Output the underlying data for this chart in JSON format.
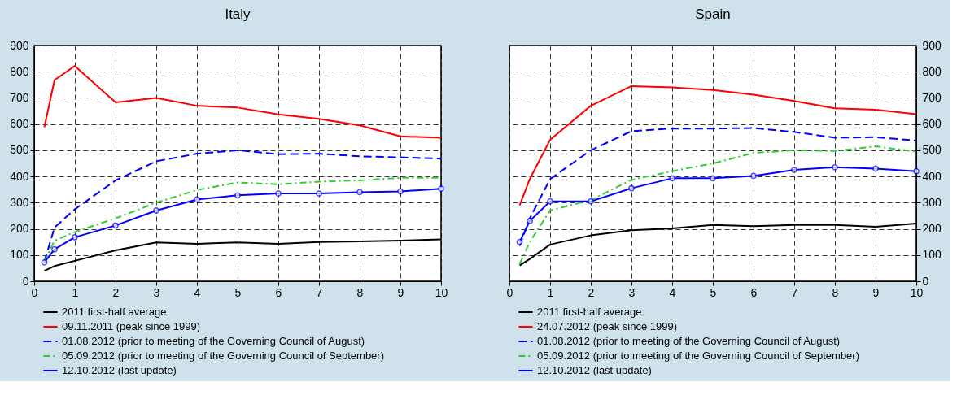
{
  "chart_data": [
    {
      "type": "line",
      "title": "Italy",
      "x": [
        0.25,
        0.5,
        1,
        2,
        3,
        4,
        5,
        6,
        7,
        8,
        9,
        10
      ],
      "xlim": [
        0,
        10
      ],
      "xticks": [
        0,
        1,
        2,
        3,
        4,
        5,
        6,
        7,
        8,
        9,
        10
      ],
      "ylim": [
        0,
        900
      ],
      "yticks": [
        0,
        100,
        200,
        300,
        400,
        500,
        600,
        700,
        800,
        900
      ],
      "grid": true,
      "legend": "bottom",
      "series": [
        {
          "name": "2011 first-half average",
          "color": "#000000",
          "line_style": "solid",
          "values": [
            40,
            58,
            78,
            118,
            148,
            143,
            148,
            143,
            150,
            152,
            155,
            160
          ]
        },
        {
          "name": "09.11.2011 (peak since 1999)",
          "color": "#ff0000",
          "line_style": "solid",
          "values": [
            588,
            768,
            822,
            683,
            700,
            670,
            663,
            637,
            620,
            595,
            553,
            548
          ]
        },
        {
          "name": "01.08.2012 (prior to meeting of the Governing Council of August)",
          "color": "#0000ff",
          "line_style": "dashed",
          "values": [
            75,
            205,
            275,
            385,
            458,
            487,
            500,
            485,
            487,
            477,
            473,
            468
          ]
        },
        {
          "name": "05.09.2012 (prior to meeting of the Governing Council of September)",
          "color": "#33cc33",
          "line_style": "dashdot",
          "values": [
            75,
            155,
            188,
            240,
            300,
            348,
            377,
            370,
            380,
            385,
            395,
            395
          ]
        },
        {
          "name": "12.10.2012 (last update)",
          "color": "#0000ff",
          "line_style": "solid",
          "marker": "circle",
          "values": [
            72,
            122,
            168,
            213,
            270,
            312,
            328,
            335,
            335,
            340,
            343,
            353
          ]
        }
      ]
    },
    {
      "type": "line",
      "title": "Spain",
      "x": [
        0.25,
        0.5,
        1,
        2,
        3,
        4,
        5,
        6,
        7,
        8,
        9,
        10
      ],
      "xlim": [
        0,
        10
      ],
      "xticks": [
        0,
        1,
        2,
        3,
        4,
        5,
        6,
        7,
        8,
        9,
        10
      ],
      "y2lim": [
        0,
        900
      ],
      "y2ticks": [
        0,
        100,
        200,
        300,
        400,
        500,
        600,
        700,
        800,
        900
      ],
      "grid": true,
      "legend": "bottom",
      "series": [
        {
          "name": "2011 first-half average",
          "color": "#000000",
          "line_style": "solid",
          "axis": "y2",
          "values": [
            60,
            85,
            140,
            175,
            195,
            202,
            215,
            210,
            215,
            215,
            208,
            220
          ]
        },
        {
          "name": "24.07.2012 (peak since 1999)",
          "color": "#ff0000",
          "line_style": "solid",
          "axis": "y2",
          "values": [
            290,
            390,
            540,
            670,
            745,
            740,
            730,
            712,
            688,
            660,
            655,
            638
          ]
        },
        {
          "name": "01.08.2012 (prior to meeting of the Governing Council of August)",
          "color": "#0000ff",
          "line_style": "dashed",
          "axis": "y2",
          "values": [
            135,
            240,
            390,
            500,
            573,
            583,
            583,
            585,
            570,
            548,
            550,
            537
          ]
        },
        {
          "name": "05.09.2012 (prior to meeting of the Governing Council of September)",
          "color": "#33cc33",
          "line_style": "dashdot",
          "axis": "y2",
          "values": [
            65,
            150,
            270,
            310,
            387,
            420,
            450,
            490,
            500,
            497,
            515,
            495
          ]
        },
        {
          "name": "12.10.2012 (last update)",
          "color": "#0000ff",
          "line_style": "solid",
          "marker": "circle",
          "axis": "y2",
          "values": [
            150,
            230,
            305,
            305,
            355,
            393,
            393,
            402,
            425,
            435,
            430,
            420
          ]
        }
      ]
    }
  ]
}
